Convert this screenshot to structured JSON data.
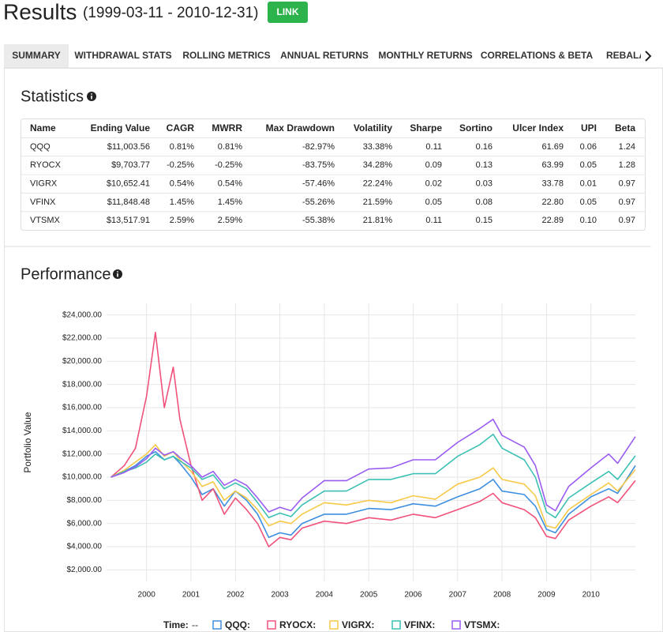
{
  "header": {
    "title": "Results",
    "date_range": "(1999-03-11 - 2010-12-31)",
    "button": "LINK"
  },
  "tabs": [
    "SUMMARY",
    "WITHDRAWAL STATS",
    "ROLLING METRICS",
    "ANNUAL RETURNS",
    "MONTHLY RETURNS",
    "CORRELATIONS & BETA",
    "REBALANCING"
  ],
  "statistics": {
    "title": "Statistics",
    "columns": [
      "Name",
      "Ending Value",
      "CAGR",
      "MWRR",
      "Max Drawdown",
      "Volatility",
      "Sharpe",
      "Sortino",
      "Ulcer Index",
      "UPI",
      "Beta"
    ],
    "rows": [
      [
        "QQQ",
        "$11,003.56",
        "0.81%",
        "0.81%",
        "-82.97%",
        "33.38%",
        "0.11",
        "0.16",
        "61.69",
        "0.06",
        "1.24"
      ],
      [
        "RYOCX",
        "$9,703.77",
        "-0.25%",
        "-0.25%",
        "-83.75%",
        "34.28%",
        "0.09",
        "0.13",
        "63.99",
        "0.05",
        "1.28"
      ],
      [
        "VIGRX",
        "$10,652.41",
        "0.54%",
        "0.54%",
        "-57.46%",
        "22.24%",
        "0.02",
        "0.03",
        "33.78",
        "0.01",
        "0.97"
      ],
      [
        "VFINX",
        "$11,848.48",
        "1.45%",
        "1.45%",
        "-55.26%",
        "21.59%",
        "0.05",
        "0.08",
        "22.80",
        "0.05",
        "0.97"
      ],
      [
        "VTSMX",
        "$13,517.91",
        "2.59%",
        "2.59%",
        "-55.38%",
        "21.81%",
        "0.11",
        "0.15",
        "22.89",
        "0.10",
        "0.97"
      ]
    ]
  },
  "performance": {
    "title": "Performance",
    "legend_time_label": "Time:",
    "legend_time_value": "--"
  },
  "chart_data": {
    "type": "line",
    "y_label": "Portfolio Value",
    "grid": true,
    "x": [
      1999.2,
      1999.5,
      1999.75,
      2000.0,
      2000.2,
      2000.4,
      2000.6,
      2000.75,
      2001.0,
      2001.25,
      2001.5,
      2001.75,
      2002.0,
      2002.25,
      2002.5,
      2002.75,
      2003.0,
      2003.25,
      2003.5,
      2004.0,
      2004.5,
      2005.0,
      2005.5,
      2006.0,
      2006.5,
      2007.0,
      2007.5,
      2007.8,
      2008.0,
      2008.5,
      2008.75,
      2009.0,
      2009.2,
      2009.5,
      2010.0,
      2010.4,
      2010.6,
      2011.0
    ],
    "xlim": [
      1999.1,
      2011.0
    ],
    "xticks": [
      2000,
      2001,
      2002,
      2003,
      2004,
      2005,
      2006,
      2007,
      2008,
      2009,
      2010
    ],
    "ylim": [
      1000,
      25000
    ],
    "yticks": [
      {
        "value": 2000,
        "label": "$2,000.00"
      },
      {
        "value": 4000,
        "label": "$4,000.00"
      },
      {
        "value": 6000,
        "label": "$6,000.00"
      },
      {
        "value": 8000,
        "label": "$8,000.00"
      },
      {
        "value": 10000,
        "label": "$10,000.00"
      },
      {
        "value": 12000,
        "label": "$12,000.00"
      },
      {
        "value": 14000,
        "label": "$14,000.00"
      },
      {
        "value": 16000,
        "label": "$16,000.00"
      },
      {
        "value": 18000,
        "label": "$18,000.00"
      },
      {
        "value": 20000,
        "label": "$20,000.00"
      },
      {
        "value": 22000,
        "label": "$22,000.00"
      },
      {
        "value": 24000,
        "label": "$24,000.00"
      }
    ],
    "series": [
      {
        "name": "QQQ:",
        "color": "#3e8fe0",
        "values": [
          10000,
          10500,
          11000,
          11800,
          12200,
          11500,
          11800,
          11200,
          10000,
          8500,
          9000,
          7500,
          8800,
          8000,
          6800,
          4800,
          5200,
          5000,
          6000,
          6800,
          6800,
          7300,
          7200,
          7700,
          7500,
          8300,
          9000,
          9800,
          8800,
          8500,
          7500,
          5500,
          5200,
          6800,
          8300,
          9000,
          8600,
          11000
        ]
      },
      {
        "name": "RYOCX:",
        "color": "#f0527a",
        "values": [
          10000,
          11000,
          12500,
          17000,
          22500,
          16000,
          19500,
          15000,
          11000,
          8000,
          9000,
          6800,
          8200,
          7200,
          6000,
          4000,
          4800,
          4600,
          5600,
          6200,
          6000,
          6500,
          6300,
          6800,
          6500,
          7200,
          7900,
          8600,
          7800,
          7200,
          6500,
          4900,
          4700,
          6300,
          7500,
          8300,
          7800,
          9700
        ]
      },
      {
        "name": "VIGRX:",
        "color": "#f7c948",
        "values": [
          10000,
          10600,
          11300,
          12000,
          12800,
          11800,
          12200,
          11500,
          10500,
          9200,
          9600,
          8000,
          8800,
          8200,
          7200,
          5800,
          6200,
          6000,
          6800,
          7800,
          7600,
          8000,
          7800,
          8400,
          8100,
          9400,
          10000,
          10800,
          9800,
          9400,
          8400,
          5800,
          5600,
          7200,
          8500,
          9500,
          8800,
          10650
        ]
      },
      {
        "name": "VFINX:",
        "color": "#3cc0b4",
        "values": [
          10000,
          10500,
          10800,
          11300,
          12000,
          11500,
          11800,
          11400,
          10800,
          9800,
          10200,
          9000,
          9500,
          9000,
          7800,
          6500,
          6900,
          6600,
          7600,
          8800,
          8800,
          9800,
          9800,
          10300,
          10300,
          11800,
          12800,
          13700,
          12500,
          11500,
          10000,
          7000,
          6500,
          8200,
          9500,
          10500,
          9800,
          11850
        ]
      },
      {
        "name": "VTSMX:",
        "color": "#9a5cf0",
        "values": [
          10000,
          10400,
          10900,
          11600,
          12500,
          11900,
          12200,
          11700,
          11000,
          10000,
          10500,
          9300,
          9800,
          9300,
          8200,
          7000,
          7400,
          7100,
          8200,
          9700,
          9700,
          10700,
          10800,
          11500,
          11500,
          13000,
          14200,
          15000,
          13600,
          12600,
          11000,
          7600,
          7100,
          9200,
          10800,
          12000,
          11200,
          13500
        ]
      }
    ]
  }
}
